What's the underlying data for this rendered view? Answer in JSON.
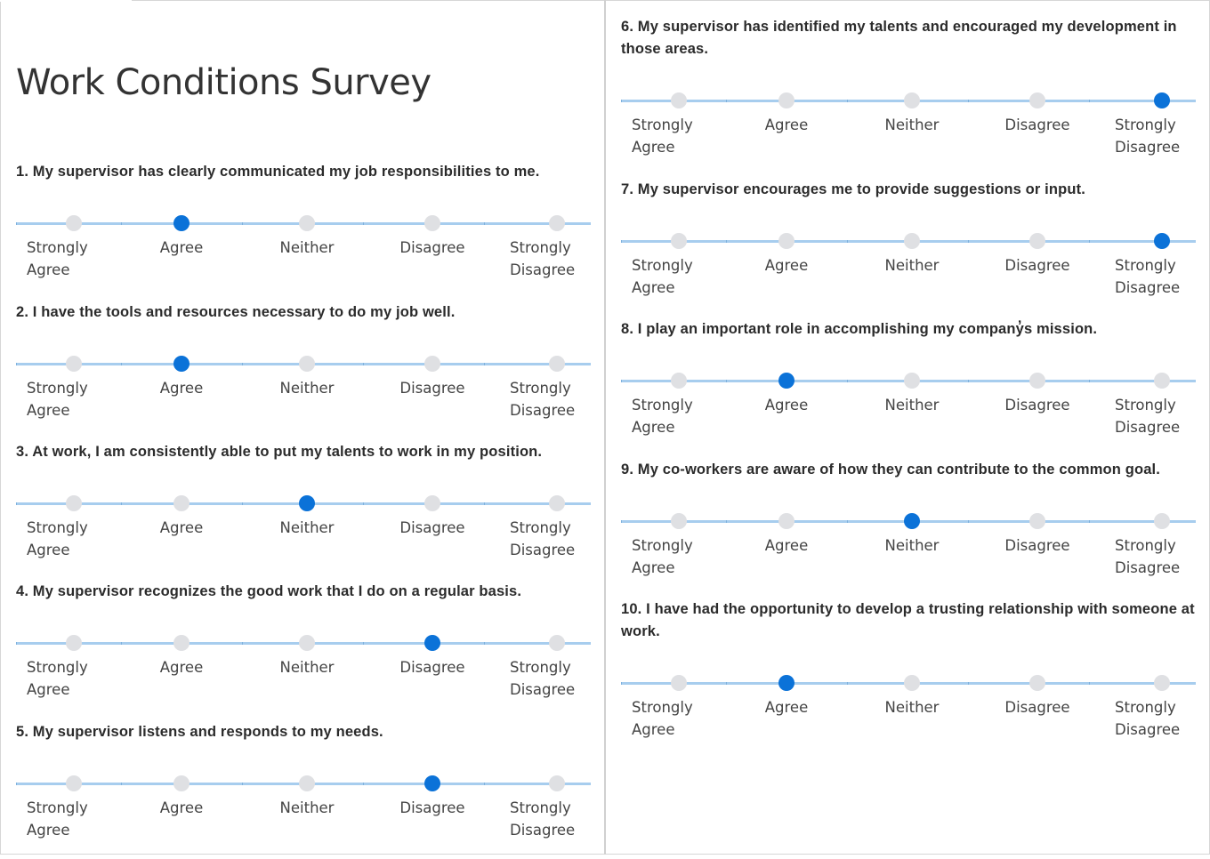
{
  "title": "Work Conditions Survey",
  "scale_labels": [
    {
      "line1": "Strongly",
      "line2": "Agree"
    },
    {
      "line1": "Agree",
      "line2": ""
    },
    {
      "line1": "Neither",
      "line2": ""
    },
    {
      "line1": "Disagree",
      "line2": ""
    },
    {
      "line1": "Strongly",
      "line2": "Disagree"
    }
  ],
  "questions": [
    {
      "number": "1.",
      "text": "My supervisor has clearly communicated my job responsibilities to me.",
      "selected": "Agree"
    },
    {
      "number": "2.",
      "text": "I have the tools and resources necessary to do my job well.",
      "selected": "Agree"
    },
    {
      "number": "3.",
      "text": "At work, I am consistently able to put my talents to work in my position.",
      "selected": "Neither"
    },
    {
      "number": "4.",
      "text": "My supervisor recognizes the good work that I do on a regular basis.",
      "selected": "Disagree"
    },
    {
      "number": "5.",
      "text": "My supervisor listens and responds to my needs.",
      "selected": "Disagree"
    },
    {
      "number": "6.",
      "text": "My supervisor has identified my talents and encouraged my development in those areas.",
      "selected": "Strongly Disagree"
    },
    {
      "number": "7.",
      "text": "My supervisor encourages me to provide suggestions or input.",
      "selected": "Strongly Disagree"
    },
    {
      "number": "8.",
      "text": "I play an important role in accomplishing my company̓s mission.",
      "selected": "Agree"
    },
    {
      "number": "9.",
      "text": "My co-workers are aware of how they can contribute to the common goal.",
      "selected": "Neither"
    },
    {
      "number": "10.",
      "text": "I have had the opportunity to develop a trusting relationship with someone at work.",
      "selected": "Agree"
    }
  ],
  "colors": {
    "selected_dot": "#0b72d8",
    "unselected_dot": "#dfe0e3",
    "track": "#a7cdee"
  }
}
